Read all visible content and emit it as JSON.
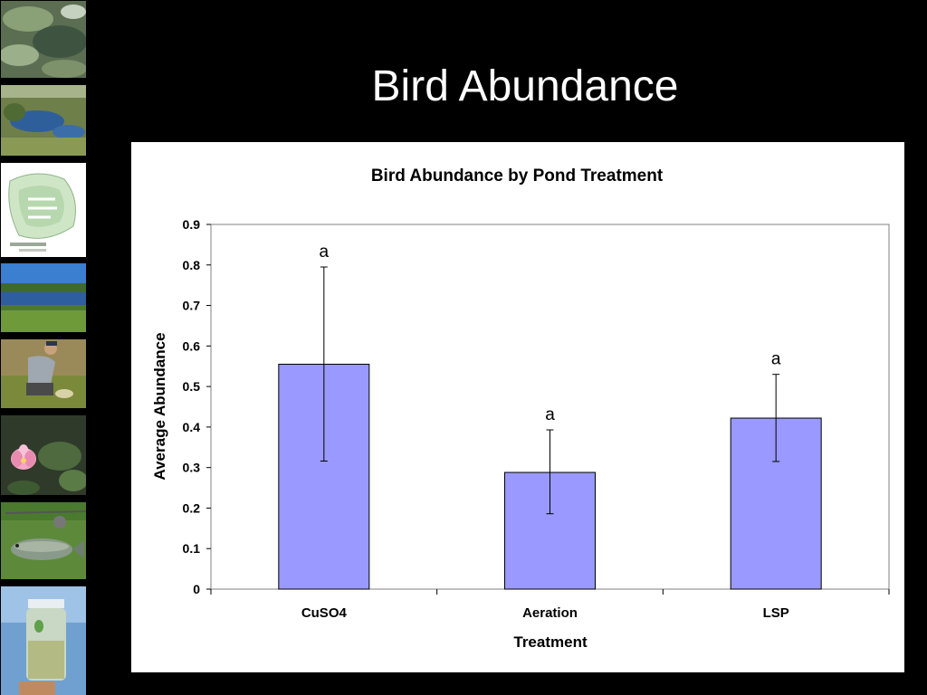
{
  "slide": {
    "title": "Bird Abundance"
  },
  "sidebar": {
    "photos": [
      {
        "subject": "algae-covered-water"
      },
      {
        "subject": "pond-with-vegetation"
      },
      {
        "subject": "site-plan-map"
      },
      {
        "subject": "pond-landscape"
      },
      {
        "subject": "field-researcher"
      },
      {
        "subject": "water-lily"
      },
      {
        "subject": "fish-and-rod"
      },
      {
        "subject": "water-sample-jar"
      }
    ]
  },
  "chart_data": {
    "type": "bar",
    "title": "Bird Abundance by Pond Treatment",
    "xlabel": "Treatment",
    "ylabel": "Average Abundance",
    "categories": [
      "CuSO4",
      "Aeration",
      "LSP"
    ],
    "values": [
      0.555,
      0.288,
      0.422
    ],
    "error_low": [
      0.316,
      0.186,
      0.315
    ],
    "error_high": [
      0.795,
      0.393,
      0.53
    ],
    "significance_letters": [
      "a",
      "a",
      "a"
    ],
    "ylim": [
      0,
      0.9
    ],
    "yticks": [
      "0",
      "0.1",
      "0.2",
      "0.3",
      "0.4",
      "0.5",
      "0.6",
      "0.7",
      "0.8",
      "0.9"
    ],
    "grid": false,
    "legend": "none",
    "bar_color": "#9999ff"
  }
}
